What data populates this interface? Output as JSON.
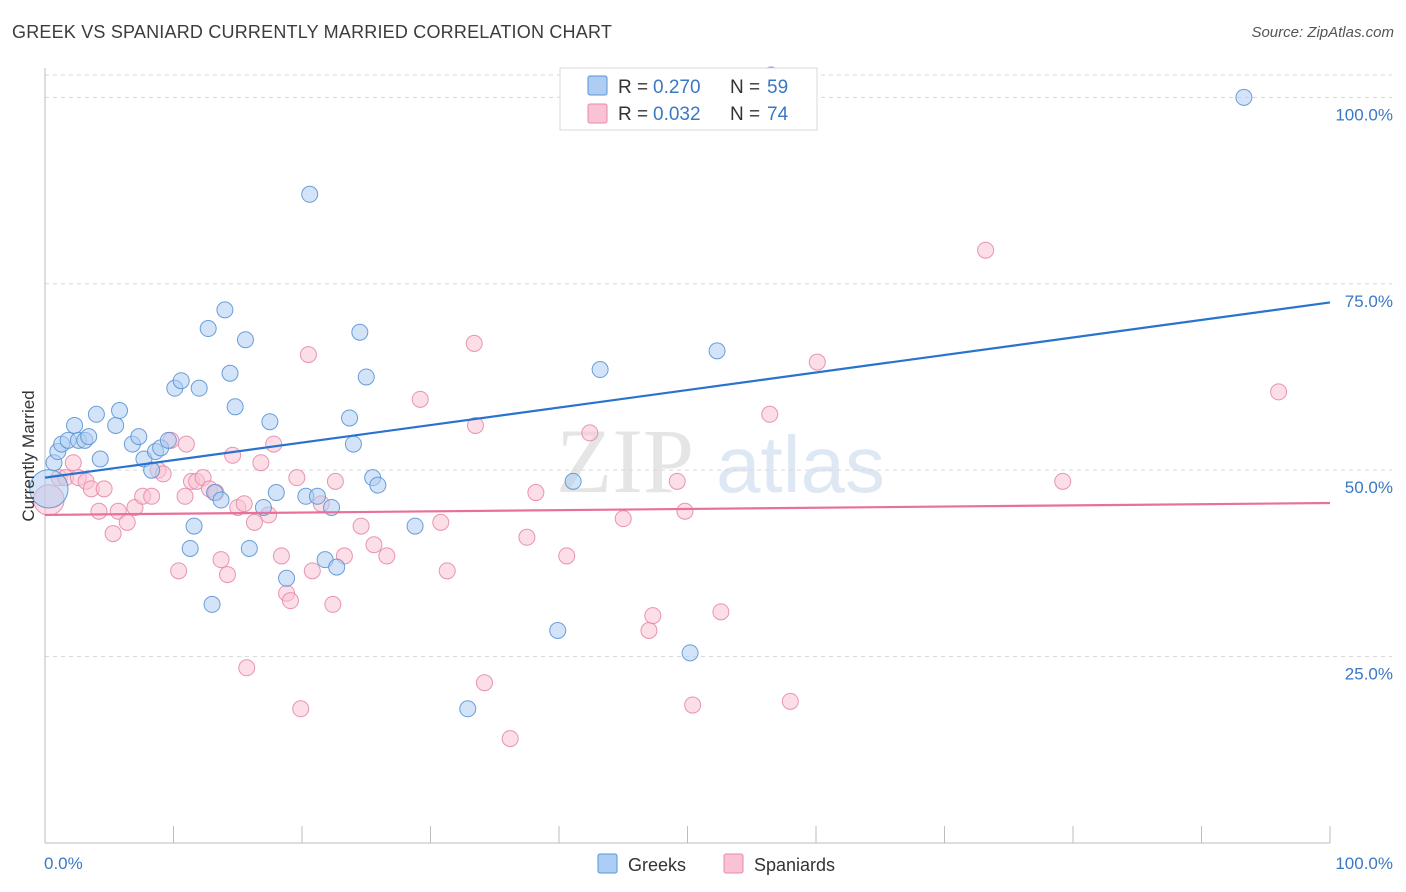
{
  "title": "GREEK VS SPANIARD CURRENTLY MARRIED CORRELATION CHART",
  "source": "Source: ZipAtlas.com",
  "watermark": {
    "zip": "ZIP",
    "atlas": "atlas"
  },
  "colors": {
    "greeks_fill": "#aecdf3",
    "greeks_stroke": "#5b93d6",
    "greeks_line": "#2a72d0",
    "spaniards_fill": "#f9c3d3",
    "spaniards_stroke": "#e58aa8",
    "spaniards_line": "#e8719b",
    "axis_label": "#3b78c4",
    "grid": "#d8d8d8"
  },
  "legend": {
    "rows": [
      {
        "series": "greeks",
        "r_label": "R = ",
        "r_value": "0.270",
        "n_label": "N = ",
        "n_value": "59"
      },
      {
        "series": "spaniards",
        "r_label": "R = ",
        "r_value": "0.032",
        "n_label": "N = ",
        "n_value": "74"
      }
    ]
  },
  "chart_data": {
    "type": "scatter",
    "title": "GREEK VS SPANIARD CURRENTLY MARRIED CORRELATION CHART",
    "xlabel": "",
    "ylabel": "Currently Married",
    "xlim": [
      0,
      100
    ],
    "ylim": [
      0,
      103
    ],
    "x_tick_labels": [
      "0.0%",
      "100.0%"
    ],
    "y_ticks": [
      25,
      50,
      75,
      100
    ],
    "y_tick_labels": [
      "25.0%",
      "50.0%",
      "75.0%",
      "100.0%"
    ],
    "grid": true,
    "legend_position": "top-center and bottom",
    "series": [
      {
        "name": "Greeks",
        "r": 0.27,
        "n": 59,
        "trend": {
          "x": [
            0,
            100
          ],
          "y": [
            49,
            72.5
          ]
        },
        "points": [
          [
            0.3,
            47.5,
            2.4
          ],
          [
            0.7,
            51,
            1.0
          ],
          [
            1.0,
            52.5,
            1.0
          ],
          [
            1.3,
            53.5,
            1.0
          ],
          [
            1.8,
            54,
            1.0
          ],
          [
            2.3,
            56,
            1.0
          ],
          [
            2.6,
            54,
            1.0
          ],
          [
            3.1,
            54,
            1.0
          ],
          [
            3.4,
            54.5,
            1.0
          ],
          [
            4.0,
            57.5,
            1.0
          ],
          [
            4.3,
            51.5,
            1.0
          ],
          [
            5.5,
            56,
            1.0
          ],
          [
            5.8,
            58,
            1.0
          ],
          [
            6.8,
            53.5,
            1.0
          ],
          [
            7.3,
            54.5,
            1.0
          ],
          [
            7.7,
            51.5,
            1.0
          ],
          [
            8.3,
            50,
            1.0
          ],
          [
            8.6,
            52.5,
            1.0
          ],
          [
            9.0,
            53,
            1.0
          ],
          [
            9.6,
            54,
            1.0
          ],
          [
            10.1,
            61,
            1.0
          ],
          [
            10.6,
            62,
            1.0
          ],
          [
            11.3,
            39.5,
            1.0
          ],
          [
            11.6,
            42.5,
            1.0
          ],
          [
            12.0,
            61,
            1.0
          ],
          [
            12.7,
            69,
            1.0
          ],
          [
            13.0,
            32,
            1.0
          ],
          [
            13.2,
            47,
            1.0
          ],
          [
            14.0,
            71.5,
            1.0
          ],
          [
            14.4,
            63,
            1.0
          ],
          [
            14.8,
            58.5,
            1.0
          ],
          [
            15.6,
            67.5,
            1.0
          ],
          [
            15.9,
            39.5,
            1.0
          ],
          [
            17.0,
            45,
            1.0
          ],
          [
            17.5,
            56.5,
            1.0
          ],
          [
            18.0,
            47,
            1.0
          ],
          [
            18.8,
            35.5,
            1.0
          ],
          [
            20.3,
            46.5,
            1.0
          ],
          [
            20.6,
            87,
            1.0
          ],
          [
            21.2,
            46.5,
            1.0
          ],
          [
            21.8,
            38,
            1.0
          ],
          [
            22.3,
            45,
            1.0
          ],
          [
            22.7,
            37,
            1.0
          ],
          [
            23.7,
            57,
            1.0
          ],
          [
            24.0,
            53.5,
            1.0
          ],
          [
            24.5,
            68.5,
            1.0
          ],
          [
            25.0,
            62.5,
            1.0
          ],
          [
            25.5,
            49,
            1.0
          ],
          [
            25.9,
            48,
            1.0
          ],
          [
            28.8,
            42.5,
            1.0
          ],
          [
            32.9,
            18,
            1.0
          ],
          [
            39.9,
            28.5,
            1.0
          ],
          [
            41.1,
            48.5,
            1.0
          ],
          [
            43.2,
            63.5,
            1.0
          ],
          [
            50.2,
            25.5,
            1.0
          ],
          [
            52.3,
            66,
            1.0
          ],
          [
            56.5,
            103,
            1.0
          ],
          [
            93.3,
            100,
            1.0
          ],
          [
            13.7,
            46,
            1.0
          ]
        ]
      },
      {
        "name": "Spaniards",
        "r": 0.032,
        "n": 74,
        "trend": {
          "x": [
            0,
            100
          ],
          "y": [
            44,
            45.6
          ]
        },
        "points": [
          [
            0.3,
            46,
            1.9
          ],
          [
            1.1,
            49,
            1.0
          ],
          [
            1.6,
            49,
            1.0
          ],
          [
            2.2,
            51,
            1.0
          ],
          [
            2.6,
            49,
            1.0
          ],
          [
            3.2,
            48.5,
            1.0
          ],
          [
            3.6,
            47.5,
            1.0
          ],
          [
            4.2,
            44.5,
            1.0
          ],
          [
            4.6,
            47.5,
            1.0
          ],
          [
            5.3,
            41.5,
            1.0
          ],
          [
            5.7,
            44.5,
            1.0
          ],
          [
            6.4,
            43,
            1.0
          ],
          [
            7.0,
            45,
            1.0
          ],
          [
            7.6,
            46.5,
            1.0
          ],
          [
            8.3,
            46.5,
            1.0
          ],
          [
            8.8,
            50,
            1.0
          ],
          [
            9.2,
            49.5,
            1.0
          ],
          [
            9.8,
            54,
            1.0
          ],
          [
            10.4,
            36.5,
            1.0
          ],
          [
            10.9,
            46.5,
            1.0
          ],
          [
            11.4,
            48.5,
            1.0
          ],
          [
            11.8,
            48.5,
            1.0
          ],
          [
            12.3,
            49,
            1.0
          ],
          [
            12.8,
            47.5,
            1.0
          ],
          [
            13.3,
            47,
            1.0
          ],
          [
            13.7,
            38,
            1.0
          ],
          [
            14.2,
            36,
            1.0
          ],
          [
            14.6,
            52,
            1.0
          ],
          [
            15.0,
            45,
            1.0
          ],
          [
            15.5,
            45.5,
            1.0
          ],
          [
            15.7,
            23.5,
            1.0
          ],
          [
            16.3,
            43,
            1.0
          ],
          [
            16.8,
            51,
            1.0
          ],
          [
            17.4,
            44,
            1.0
          ],
          [
            17.8,
            53.5,
            1.0
          ],
          [
            18.4,
            38.5,
            1.0
          ],
          [
            18.8,
            33.5,
            1.0
          ],
          [
            19.1,
            32.5,
            1.0
          ],
          [
            19.6,
            49,
            1.0
          ],
          [
            19.9,
            18,
            1.0
          ],
          [
            20.5,
            65.5,
            1.0
          ],
          [
            20.8,
            36.5,
            1.0
          ],
          [
            21.5,
            45.5,
            1.0
          ],
          [
            22.4,
            32,
            1.0
          ],
          [
            22.6,
            48.5,
            1.0
          ],
          [
            23.3,
            38.5,
            1.0
          ],
          [
            24.6,
            42.5,
            1.0
          ],
          [
            25.6,
            40,
            1.0
          ],
          [
            26.6,
            38.5,
            1.0
          ],
          [
            29.2,
            59.5,
            1.0
          ],
          [
            30.8,
            43,
            1.0
          ],
          [
            31.3,
            36.5,
            1.0
          ],
          [
            33.4,
            67,
            1.0
          ],
          [
            33.5,
            56,
            1.0
          ],
          [
            34.2,
            21.5,
            1.0
          ],
          [
            36.2,
            14,
            1.0
          ],
          [
            38.2,
            47,
            1.0
          ],
          [
            40.6,
            38.5,
            1.0
          ],
          [
            42.4,
            55,
            1.0
          ],
          [
            45.0,
            43.5,
            1.0
          ],
          [
            47.0,
            28.5,
            1.0
          ],
          [
            47.3,
            30.5,
            1.0
          ],
          [
            49.2,
            48.5,
            1.0
          ],
          [
            49.8,
            44.5,
            1.0
          ],
          [
            50.4,
            18.5,
            1.0
          ],
          [
            52.6,
            31,
            1.0
          ],
          [
            56.4,
            57.5,
            1.0
          ],
          [
            58.0,
            19,
            1.0
          ],
          [
            60.1,
            64.5,
            1.0
          ],
          [
            73.2,
            79.5,
            1.0
          ],
          [
            79.2,
            48.5,
            1.0
          ],
          [
            96.0,
            60.5,
            1.0
          ],
          [
            11.0,
            53.5,
            1.0
          ],
          [
            37.5,
            41,
            1.0
          ]
        ]
      }
    ]
  },
  "bottom_legend": [
    {
      "series": "greeks",
      "label": "Greeks"
    },
    {
      "series": "spaniards",
      "label": "Spaniards"
    }
  ]
}
